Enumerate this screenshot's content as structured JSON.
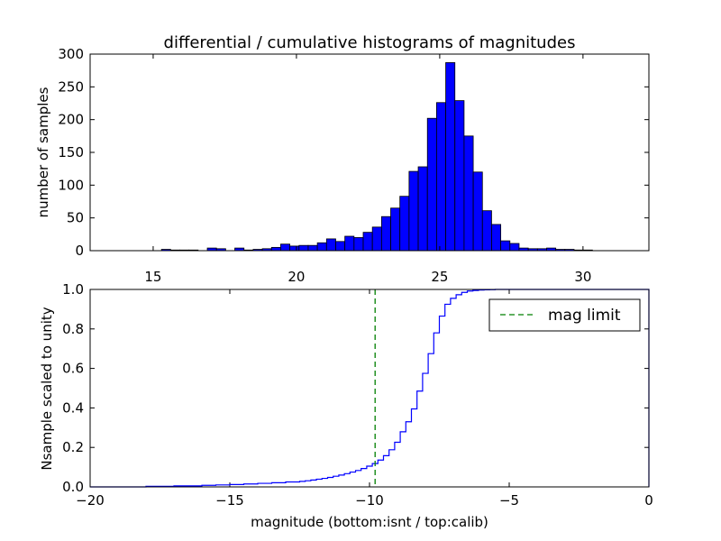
{
  "title": "differential / cumulative histograms of magnitudes",
  "chart_data": [
    {
      "type": "bar",
      "subtype": "histogram",
      "ylabel": "number of samples",
      "xlim": [
        12.8,
        32.3
      ],
      "ylim": [
        0,
        300
      ],
      "xticks": [
        15,
        20,
        25,
        30
      ],
      "yticks": [
        0,
        50,
        100,
        150,
        200,
        250,
        300
      ],
      "x_tick_position": "bottom-inside-gap",
      "bar_color": "#0000ff",
      "bin_width": 0.32,
      "bins": [
        {
          "x": 15.45,
          "v": 2
        },
        {
          "x": 15.77,
          "v": 1
        },
        {
          "x": 16.09,
          "v": 1
        },
        {
          "x": 16.41,
          "v": 1
        },
        {
          "x": 17.05,
          "v": 4
        },
        {
          "x": 17.37,
          "v": 3
        },
        {
          "x": 18.01,
          "v": 4
        },
        {
          "x": 18.33,
          "v": 1
        },
        {
          "x": 18.65,
          "v": 2
        },
        {
          "x": 18.97,
          "v": 3
        },
        {
          "x": 19.29,
          "v": 5
        },
        {
          "x": 19.61,
          "v": 10
        },
        {
          "x": 19.93,
          "v": 7
        },
        {
          "x": 20.25,
          "v": 8
        },
        {
          "x": 20.57,
          "v": 8
        },
        {
          "x": 20.89,
          "v": 12
        },
        {
          "x": 21.21,
          "v": 18
        },
        {
          "x": 21.53,
          "v": 14
        },
        {
          "x": 21.85,
          "v": 22
        },
        {
          "x": 22.17,
          "v": 20
        },
        {
          "x": 22.49,
          "v": 28
        },
        {
          "x": 22.81,
          "v": 36
        },
        {
          "x": 23.13,
          "v": 52
        },
        {
          "x": 23.45,
          "v": 65
        },
        {
          "x": 23.77,
          "v": 83
        },
        {
          "x": 24.09,
          "v": 121
        },
        {
          "x": 24.41,
          "v": 128
        },
        {
          "x": 24.73,
          "v": 202
        },
        {
          "x": 25.05,
          "v": 226
        },
        {
          "x": 25.37,
          "v": 287
        },
        {
          "x": 25.69,
          "v": 229
        },
        {
          "x": 26.01,
          "v": 175
        },
        {
          "x": 26.33,
          "v": 120
        },
        {
          "x": 26.65,
          "v": 61
        },
        {
          "x": 26.97,
          "v": 40
        },
        {
          "x": 27.29,
          "v": 15
        },
        {
          "x": 27.61,
          "v": 11
        },
        {
          "x": 27.93,
          "v": 4
        },
        {
          "x": 28.25,
          "v": 3
        },
        {
          "x": 28.57,
          "v": 3
        },
        {
          "x": 28.89,
          "v": 4
        },
        {
          "x": 29.21,
          "v": 2
        },
        {
          "x": 29.53,
          "v": 2
        },
        {
          "x": 29.85,
          "v": 1
        },
        {
          "x": 30.17,
          "v": 1
        }
      ]
    },
    {
      "type": "line",
      "subtype": "cumulative-step",
      "xlabel": "magnitude (bottom:isnt / top:calib)",
      "ylabel": "Nsample scaled to unity",
      "xlim": [
        -20,
        0
      ],
      "ylim": [
        0,
        1
      ],
      "xticks": [
        -20,
        -15,
        -10,
        -5,
        0
      ],
      "xtick_labels": [
        "−20",
        "−15",
        "−10",
        "−5",
        "0"
      ],
      "yticks": [
        0.0,
        0.2,
        0.4,
        0.6,
        0.8,
        1.0
      ],
      "ytick_labels": [
        "0.0",
        "0.2",
        "0.4",
        "0.6",
        "0.8",
        "1.0"
      ],
      "line_color": "#0000ff",
      "x": [
        -20,
        -18,
        -17,
        -16,
        -15.5,
        -15,
        -14.5,
        -14,
        -13.5,
        -13,
        -12.5,
        -12.3,
        -12.1,
        -11.9,
        -11.7,
        -11.5,
        -11.3,
        -11.1,
        -10.9,
        -10.7,
        -10.5,
        -10.3,
        -10.1,
        -9.9,
        -9.7,
        -9.5,
        -9.3,
        -9.1,
        -8.9,
        -8.7,
        -8.5,
        -8.3,
        -8.1,
        -7.9,
        -7.7,
        -7.5,
        -7.3,
        -7.1,
        -6.9,
        -6.7,
        -6.5,
        -6.3,
        -6.1,
        -5.9,
        -5.7,
        -5.5,
        -5.0,
        0
      ],
      "y": [
        0.0,
        0.003,
        0.005,
        0.008,
        0.01,
        0.012,
        0.015,
        0.018,
        0.021,
        0.025,
        0.028,
        0.031,
        0.035,
        0.039,
        0.043,
        0.048,
        0.054,
        0.06,
        0.067,
        0.075,
        0.083,
        0.093,
        0.105,
        0.118,
        0.136,
        0.158,
        0.188,
        0.226,
        0.279,
        0.33,
        0.395,
        0.485,
        0.575,
        0.675,
        0.78,
        0.865,
        0.925,
        0.955,
        0.973,
        0.985,
        0.992,
        0.995,
        0.997,
        0.998,
        0.999,
        1.0,
        1.0,
        1.0
      ],
      "mag_limit_x": -9.8,
      "mag_limit_color": "#007f00",
      "legend": {
        "label": "mag limit",
        "position": "upper right"
      }
    }
  ]
}
